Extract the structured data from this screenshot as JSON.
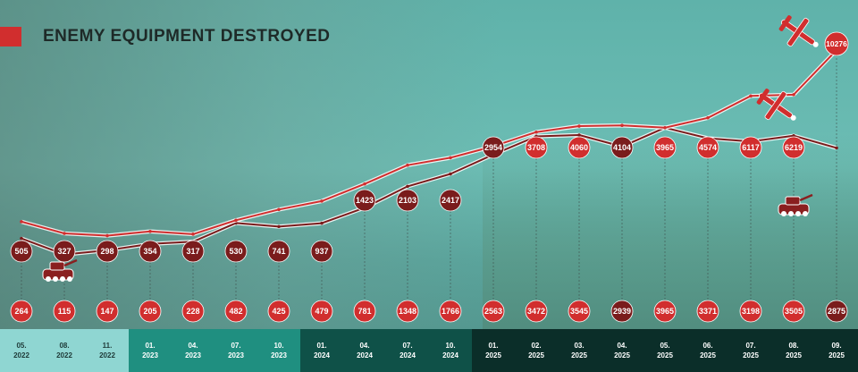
{
  "title": "ENEMY EQUIPMENT DESTROYED",
  "colors": {
    "accent": "#d12e2e",
    "dark_red": "#7a1c1c",
    "axis_light": "#8fd6d2",
    "axis_mid": "#1f8f80",
    "axis_dark": "#0f5148",
    "axis_darkest": "#0b2e29"
  },
  "icons": [
    "tank-icon",
    "drone-icon",
    "drone-icon",
    "armored-vehicle-icon"
  ],
  "chart_data": {
    "type": "line",
    "categories": [
      [
        "05.",
        "2022"
      ],
      [
        "08.",
        "2022"
      ],
      [
        "11.",
        "2022"
      ],
      [
        "01.",
        "2023"
      ],
      [
        "04.",
        "2023"
      ],
      [
        "07.",
        "2023"
      ],
      [
        "10.",
        "2023"
      ],
      [
        "01.",
        "2024"
      ],
      [
        "04.",
        "2024"
      ],
      [
        "07.",
        "2024"
      ],
      [
        "10.",
        "2024"
      ],
      [
        "01.",
        "2025"
      ],
      [
        "02.",
        "2025"
      ],
      [
        "03.",
        "2025"
      ],
      [
        "04.",
        "2025"
      ],
      [
        "05.",
        "2025"
      ],
      [
        "06.",
        "2025"
      ],
      [
        "07.",
        "2025"
      ],
      [
        "08.",
        "2025"
      ],
      [
        "09.",
        "2025"
      ]
    ],
    "series": [
      {
        "color": "dark_red",
        "values": [
          264,
          115,
          147,
          205,
          228,
          482,
          425,
          479,
          781,
          1348,
          1766,
          2563,
          3472,
          3545,
          2939,
          3965,
          3371,
          3198,
          3505,
          2875
        ]
      },
      {
        "color": "accent",
        "values": [
          505,
          327,
          298,
          354,
          317,
          530,
          741,
          937,
          1423,
          2103,
          2417,
          2954,
          3708,
          4060,
          4104,
          3965,
          4574,
          6117,
          6219,
          10276
        ]
      }
    ],
    "ylim": [
      0,
      10276
    ],
    "grid": false,
    "xlabel": "",
    "ylabel": ""
  }
}
